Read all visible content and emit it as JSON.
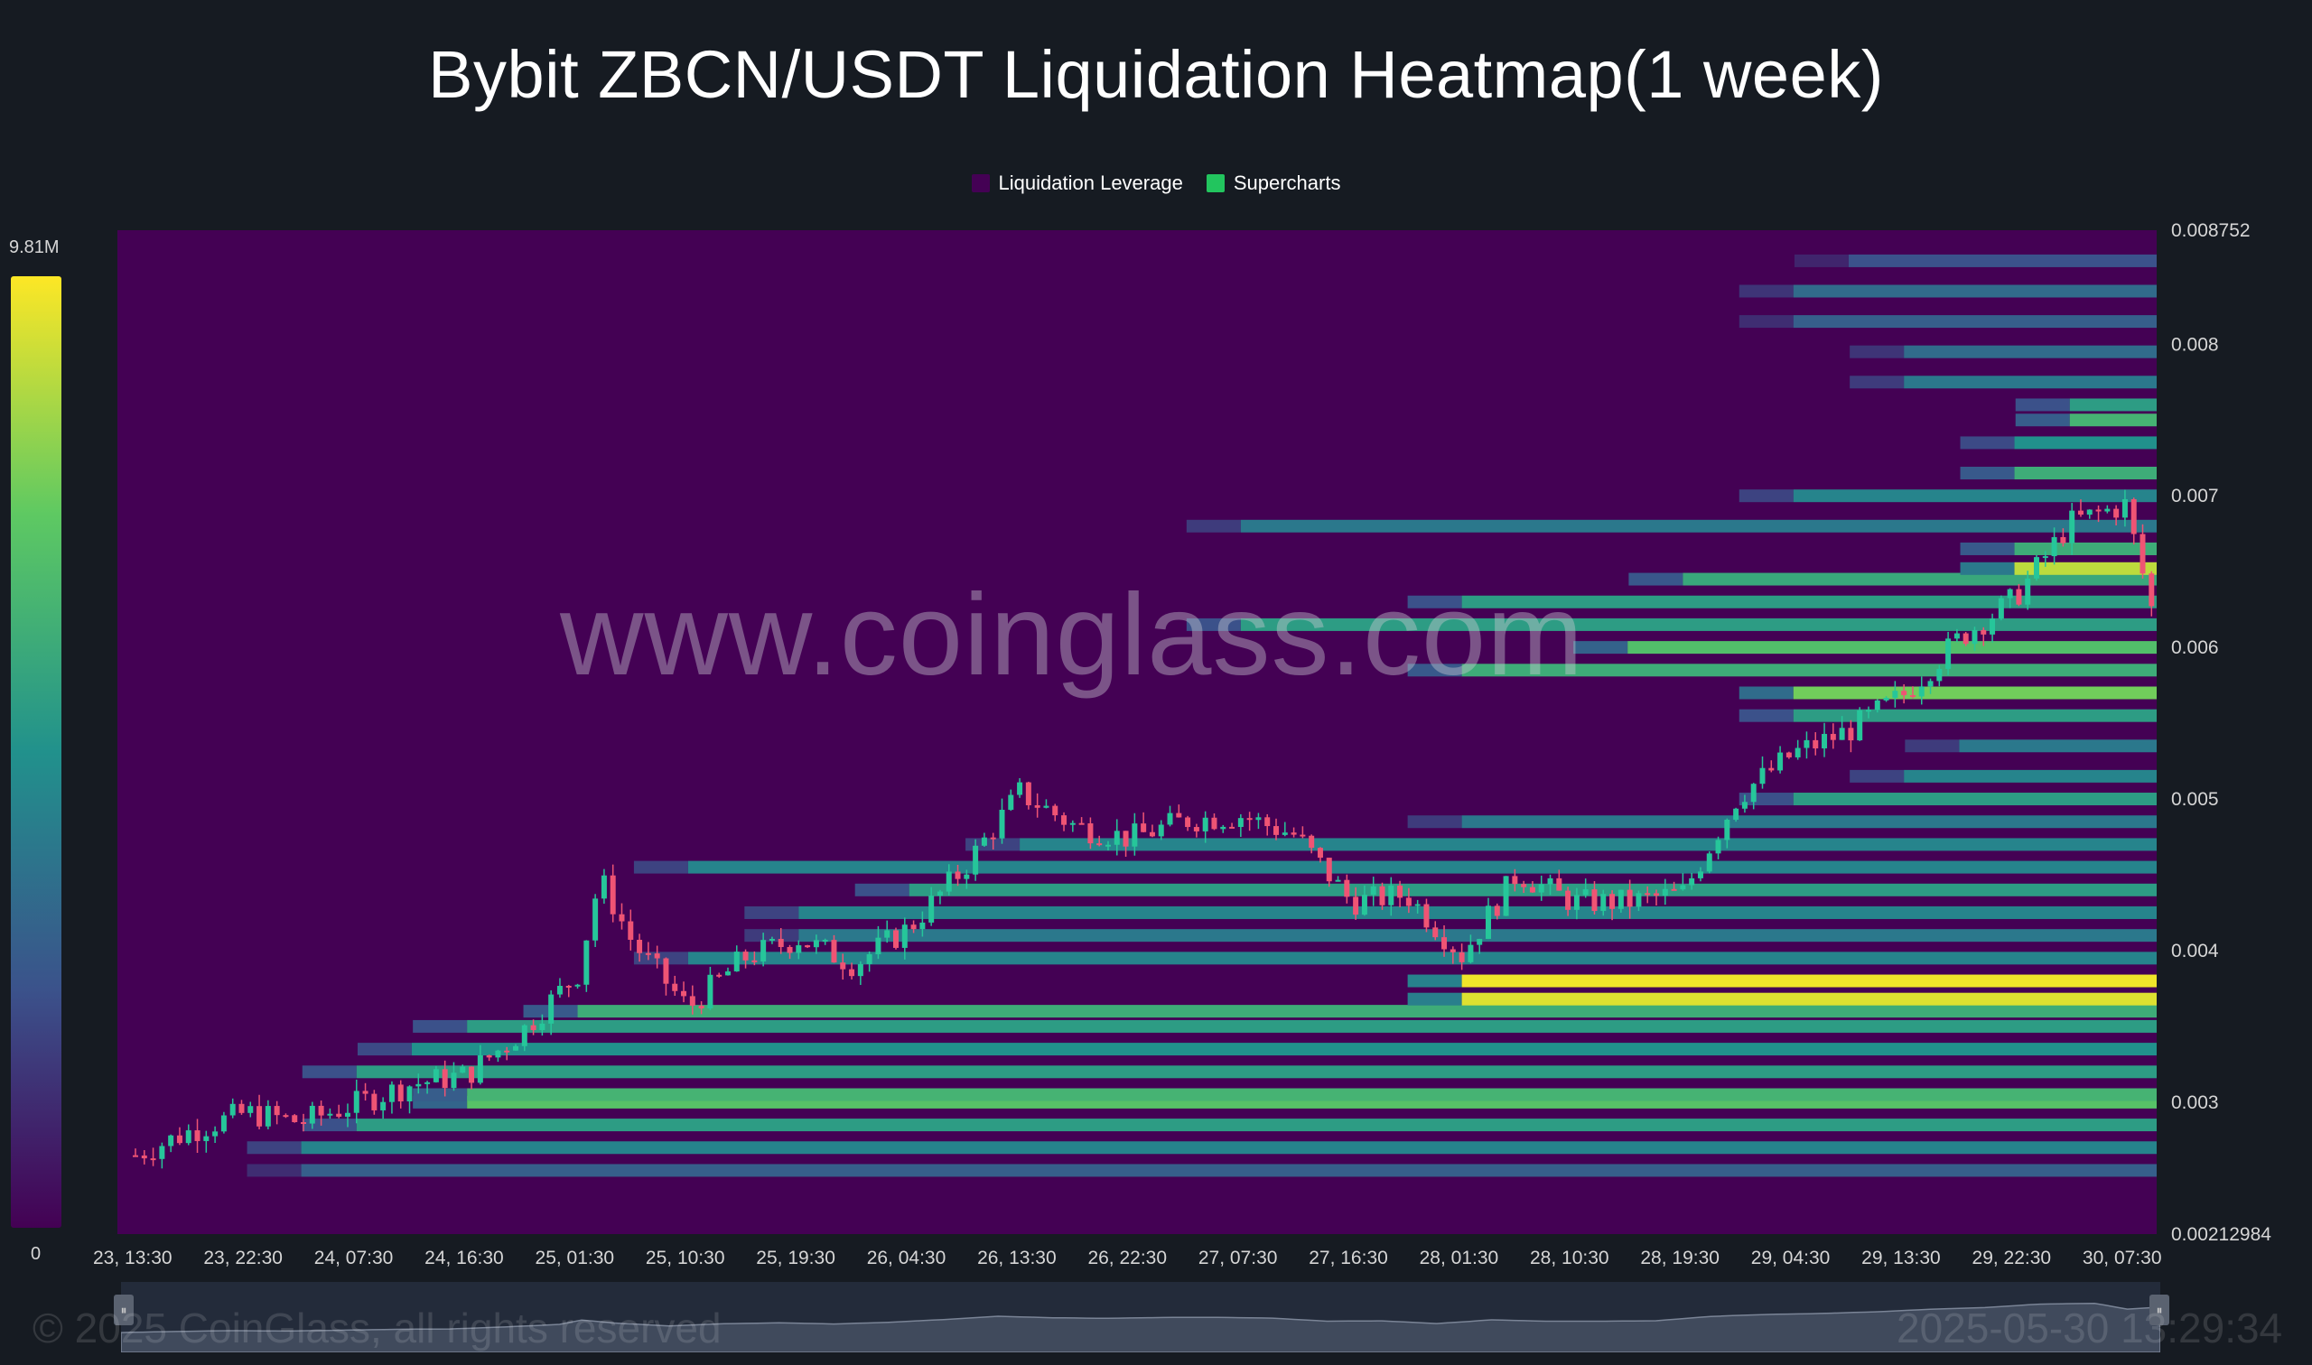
{
  "title": "Bybit ZBCN/USDT Liquidation Heatmap(1 week)",
  "legend": [
    {
      "label": "Liquidation Leverage",
      "color": "#440154"
    },
    {
      "label": "Supercharts",
      "color": "#22c55e"
    }
  ],
  "color_scale": {
    "max_label": "9.81M",
    "min_label": "0",
    "colors": [
      "#440154",
      "#3b528b",
      "#21918c",
      "#5ec962",
      "#fde725"
    ]
  },
  "watermark": "www.coinglass.com",
  "footer": {
    "copyright": "© 2025 CoinGlass, all rights reserved",
    "timestamp": "2025-05-30 13:29:34"
  },
  "colors": {
    "background": "#161b22",
    "up_candle": "#26c69a",
    "down_candle": "#ef5474"
  },
  "chart_data": {
    "type": "heatmap",
    "title": "Bybit ZBCN/USDT Liquidation Heatmap(1 week)",
    "xlabel": "",
    "ylabel": "",
    "x_ticks": [
      "23, 13:30",
      "23, 22:30",
      "24, 07:30",
      "24, 16:30",
      "25, 01:30",
      "25, 10:30",
      "25, 19:30",
      "26, 04:30",
      "26, 13:30",
      "26, 22:30",
      "27, 07:30",
      "27, 16:30",
      "28, 01:30",
      "28, 10:30",
      "28, 19:30",
      "29, 04:30",
      "29, 13:30",
      "29, 22:30",
      "30, 07:30"
    ],
    "y_ticks": [
      0.003,
      0.004,
      0.005,
      0.006,
      0.007,
      0.008
    ],
    "y_range": [
      0.00212984,
      0.008752
    ],
    "y_min_label": "0.00212984",
    "y_max_label": "0.008752",
    "legend_position": "top-center",
    "price_path": [
      {
        "t": 0,
        "price": 0.00265
      },
      {
        "t": 0.5,
        "price": 0.00281
      },
      {
        "t": 1,
        "price": 0.00293
      },
      {
        "t": 1.5,
        "price": 0.00287
      },
      {
        "t": 2,
        "price": 0.00299
      },
      {
        "t": 2.5,
        "price": 0.00312
      },
      {
        "t": 3,
        "price": 0.00318
      },
      {
        "t": 3.5,
        "price": 0.00347
      },
      {
        "t": 4,
        "price": 0.00385
      },
      {
        "t": 4.2,
        "price": 0.00448
      },
      {
        "t": 4.5,
        "price": 0.00405
      },
      {
        "t": 5,
        "price": 0.00362
      },
      {
        "t": 5.5,
        "price": 0.00395
      },
      {
        "t": 6,
        "price": 0.00408
      },
      {
        "t": 6.5,
        "price": 0.00391
      },
      {
        "t": 7,
        "price": 0.00415
      },
      {
        "t": 7.5,
        "price": 0.00455
      },
      {
        "t": 8,
        "price": 0.00504
      },
      {
        "t": 8.5,
        "price": 0.00482
      },
      {
        "t": 9,
        "price": 0.00474
      },
      {
        "t": 9.5,
        "price": 0.00486
      },
      {
        "t": 10,
        "price": 0.00489
      },
      {
        "t": 10.5,
        "price": 0.00476
      },
      {
        "t": 11,
        "price": 0.00432
      },
      {
        "t": 11.5,
        "price": 0.00437
      },
      {
        "t": 12,
        "price": 0.00397
      },
      {
        "t": 12.5,
        "price": 0.00451
      },
      {
        "t": 13,
        "price": 0.00432
      },
      {
        "t": 13.5,
        "price": 0.00432
      },
      {
        "t": 14,
        "price": 0.00438
      },
      {
        "t": 14.5,
        "price": 0.00502
      },
      {
        "t": 15,
        "price": 0.0053
      },
      {
        "t": 15.5,
        "price": 0.00545
      },
      {
        "t": 16,
        "price": 0.00569
      },
      {
        "t": 16.5,
        "price": 0.00606
      },
      {
        "t": 17,
        "price": 0.00632
      },
      {
        "t": 17.5,
        "price": 0.00682
      },
      {
        "t": 18,
        "price": 0.00694
      },
      {
        "t": 18.3,
        "price": 0.00609
      },
      {
        "t": 18.6,
        "price": 0.00638
      }
    ],
    "liquidation_bands": [
      {
        "price": 0.00255,
        "intensity": 0.3,
        "start_t": 1.5
      },
      {
        "price": 0.0027,
        "intensity": 0.45,
        "start_t": 1.5
      },
      {
        "price": 0.00285,
        "intensity": 0.55,
        "start_t": 2.0
      },
      {
        "price": 0.003,
        "intensity": 0.72,
        "start_t": 3.0
      },
      {
        "price": 0.00305,
        "intensity": 0.65,
        "start_t": 3.0
      },
      {
        "price": 0.0032,
        "intensity": 0.55,
        "start_t": 2.0
      },
      {
        "price": 0.00335,
        "intensity": 0.5,
        "start_t": 2.5
      },
      {
        "price": 0.0035,
        "intensity": 0.55,
        "start_t": 3.0
      },
      {
        "price": 0.0036,
        "intensity": 0.62,
        "start_t": 4.0
      },
      {
        "price": 0.00368,
        "intensity": 0.95,
        "start_t": 12.0
      },
      {
        "price": 0.0038,
        "intensity": 0.98,
        "start_t": 12.0
      },
      {
        "price": 0.00395,
        "intensity": 0.45,
        "start_t": 5.0
      },
      {
        "price": 0.0041,
        "intensity": 0.4,
        "start_t": 6.0
      },
      {
        "price": 0.00425,
        "intensity": 0.45,
        "start_t": 6.0
      },
      {
        "price": 0.0044,
        "intensity": 0.55,
        "start_t": 7.0
      },
      {
        "price": 0.00455,
        "intensity": 0.45,
        "start_t": 5.0
      },
      {
        "price": 0.0047,
        "intensity": 0.45,
        "start_t": 8.0
      },
      {
        "price": 0.00485,
        "intensity": 0.4,
        "start_t": 12.0
      },
      {
        "price": 0.005,
        "intensity": 0.55,
        "start_t": 15.0
      },
      {
        "price": 0.00515,
        "intensity": 0.45,
        "start_t": 16.0
      },
      {
        "price": 0.00535,
        "intensity": 0.4,
        "start_t": 16.5
      },
      {
        "price": 0.00555,
        "intensity": 0.55,
        "start_t": 15.0
      },
      {
        "price": 0.0057,
        "intensity": 0.78,
        "start_t": 15.0
      },
      {
        "price": 0.00585,
        "intensity": 0.62,
        "start_t": 12.0
      },
      {
        "price": 0.006,
        "intensity": 0.7,
        "start_t": 13.5
      },
      {
        "price": 0.00615,
        "intensity": 0.55,
        "start_t": 10.0
      },
      {
        "price": 0.0063,
        "intensity": 0.55,
        "start_t": 12.0
      },
      {
        "price": 0.00645,
        "intensity": 0.6,
        "start_t": 14.0
      },
      {
        "price": 0.00652,
        "intensity": 0.9,
        "start_t": 17.0
      },
      {
        "price": 0.00665,
        "intensity": 0.62,
        "start_t": 17.0
      },
      {
        "price": 0.0068,
        "intensity": 0.4,
        "start_t": 10.0
      },
      {
        "price": 0.007,
        "intensity": 0.45,
        "start_t": 15.0
      },
      {
        "price": 0.00715,
        "intensity": 0.62,
        "start_t": 17.0
      },
      {
        "price": 0.00735,
        "intensity": 0.5,
        "start_t": 17.0
      },
      {
        "price": 0.0075,
        "intensity": 0.65,
        "start_t": 17.5
      },
      {
        "price": 0.0076,
        "intensity": 0.55,
        "start_t": 17.5
      },
      {
        "price": 0.00775,
        "intensity": 0.4,
        "start_t": 16.0
      },
      {
        "price": 0.00795,
        "intensity": 0.35,
        "start_t": 16.0
      },
      {
        "price": 0.00815,
        "intensity": 0.3,
        "start_t": 15.0
      },
      {
        "price": 0.00835,
        "intensity": 0.35,
        "start_t": 15.0
      },
      {
        "price": 0.00855,
        "intensity": 0.25,
        "start_t": 15.5
      }
    ]
  }
}
